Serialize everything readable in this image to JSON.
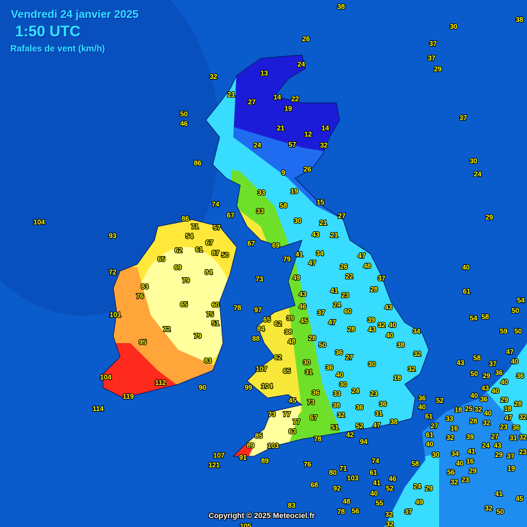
{
  "header": {
    "date": "Vendredi 24 janvier 2025",
    "time": "1:50 UTC",
    "parameter": "Rafales de vent (km/h)"
  },
  "copyright": "Copyright © 2025 Meteociel.fr",
  "colors": {
    "sea": "#0a5ccc",
    "dark_blue": "#1c1cd8",
    "blue": "#1f6cf0",
    "cyan": "#38dcff",
    "green": "#6ee02a",
    "yellow": "#ffe83a",
    "light_yellow": "#ffff9e",
    "orange": "#ffa53a",
    "red": "#ff2a1e"
  },
  "stations": [
    "38",
    "30",
    "38",
    "26",
    "37",
    "37",
    "29",
    "13",
    "24",
    "32",
    "21",
    "27",
    "14",
    "22",
    "19",
    "50",
    "46",
    "21",
    "12",
    "14",
    "24",
    "57",
    "32",
    "37",
    "86",
    "30",
    "9",
    "26",
    "24",
    "33",
    "19",
    "15",
    "74",
    "58",
    "33",
    "27",
    "29",
    "104",
    "67",
    "30",
    "21",
    "86",
    "71",
    "54",
    "57",
    "93",
    "43",
    "21",
    "67",
    "67",
    "69",
    "62",
    "61",
    "87",
    "50",
    "41",
    "47",
    "34",
    "47",
    "65",
    "79",
    "48",
    "69",
    "84",
    "26",
    "22",
    "40",
    "72",
    "73",
    "49",
    "37",
    "79",
    "83",
    "28",
    "41",
    "61",
    "76",
    "43",
    "24",
    "23",
    "54",
    "65",
    "46",
    "43",
    "60",
    "60",
    "78",
    "101",
    "97",
    "65",
    "39",
    "45",
    "37",
    "54",
    "58",
    "50",
    "75",
    "51",
    "84",
    "62",
    "47",
    "39",
    "32",
    "40",
    "43",
    "72",
    "28",
    "34",
    "38",
    "59",
    "50",
    "88",
    "48",
    "28",
    "40",
    "79",
    "95",
    "50",
    "38",
    "36",
    "27",
    "32",
    "47",
    "62",
    "83",
    "43",
    "58",
    "40",
    "30",
    "30",
    "37",
    "31",
    "36",
    "32",
    "107",
    "50",
    "29",
    "36",
    "40",
    "36",
    "65",
    "104",
    "40",
    "18",
    "112",
    "33",
    "30",
    "99",
    "104",
    "36",
    "24",
    "90",
    "23",
    "43",
    "119",
    "45",
    "73",
    "40",
    "36",
    "40",
    "29",
    "36",
    "52",
    "28",
    "114",
    "38",
    "32",
    "36",
    "31",
    "36",
    "40",
    "33",
    "18",
    "25",
    "32",
    "40",
    "18",
    "32",
    "73",
    "77",
    "67",
    "52",
    "47",
    "38",
    "61",
    "27",
    "28",
    "32",
    "47",
    "77",
    "63",
    "51",
    "42",
    "16",
    "61",
    "27",
    "23",
    "36",
    "31",
    "32",
    "78",
    "89",
    "85",
    "40",
    "32",
    "39",
    "24",
    "43",
    "103",
    "94",
    "107",
    "91",
    "30",
    "41",
    "29",
    "37",
    "23",
    "121",
    "89",
    "76",
    "74",
    "58",
    "34",
    "40",
    "56",
    "16",
    "23",
    "29",
    "19",
    "80",
    "71",
    "103",
    "61",
    "68",
    "92",
    "41",
    "46",
    "52",
    "24",
    "29",
    "32",
    "37",
    "49",
    "41",
    "45",
    "40",
    "55",
    "32",
    "50",
    "32",
    "48",
    "78",
    "56",
    "83",
    "105",
    "32"
  ]
}
